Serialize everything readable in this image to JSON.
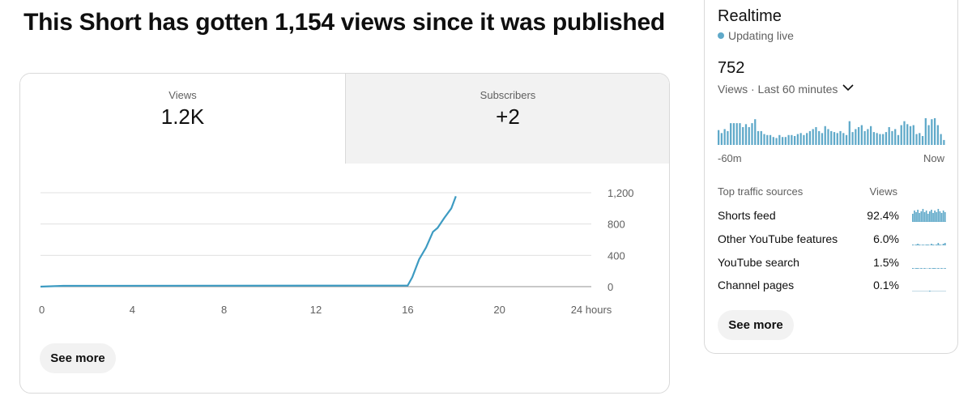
{
  "headline": "This Short has gotten 1,154 views since it was published",
  "metrics": [
    {
      "label": "Views",
      "value": "1.2K"
    },
    {
      "label": "Subscribers",
      "value": "+2"
    }
  ],
  "chart_data": {
    "type": "line",
    "title": "",
    "xlabel": "",
    "ylabel": "",
    "x_ticks": [
      "0",
      "4",
      "8",
      "12",
      "16",
      "20",
      "24 hours"
    ],
    "x_tick_values": [
      0,
      4,
      8,
      12,
      16,
      20,
      24
    ],
    "y_ticks": [
      "0",
      "400",
      "800",
      "1,200"
    ],
    "y_tick_values": [
      0,
      400,
      800,
      1200
    ],
    "xlim": [
      0,
      24
    ],
    "ylim": [
      0,
      1200
    ],
    "grid": true,
    "y_axis_side": "right",
    "series": [
      {
        "color": "#3d9bc2",
        "x": [
          0,
          1,
          16,
          16.2,
          16.5,
          16.8,
          17.1,
          17.3,
          17.6,
          17.9,
          18.1
        ],
        "y": [
          0,
          10,
          15,
          120,
          350,
          500,
          700,
          750,
          880,
          1000,
          1154
        ]
      }
    ]
  },
  "main_see_more": "See more",
  "realtime": {
    "title": "Realtime",
    "status": "Updating live",
    "count": "752",
    "period": "Views · Last 60 minutes",
    "bar_color": "#5fa9c9",
    "bars": [
      15,
      12,
      16,
      14,
      22,
      22,
      22,
      22,
      18,
      21,
      18,
      22,
      26,
      14,
      14,
      11,
      10,
      10,
      8,
      7,
      10,
      8,
      8,
      10,
      10,
      9,
      11,
      12,
      10,
      12,
      14,
      16,
      18,
      14,
      12,
      19,
      16,
      14,
      13,
      12,
      14,
      12,
      10,
      24,
      13,
      16,
      18,
      20,
      14,
      16,
      19,
      13,
      12,
      11,
      11,
      13,
      18,
      14,
      16,
      10,
      20,
      24,
      21,
      19,
      20,
      11,
      12,
      9,
      27,
      20,
      26,
      27,
      20,
      11,
      5
    ],
    "axis_left": "-60m",
    "axis_right": "Now",
    "traffic_header": "Top traffic sources",
    "traffic_views_header": "Views",
    "sources": [
      {
        "name": "Shorts feed",
        "pct": "92.4%",
        "spark": [
          10,
          14,
          12,
          15,
          11,
          13,
          16,
          12,
          14,
          10,
          13,
          15,
          11,
          14,
          12,
          16,
          13,
          11,
          14,
          12
        ]
      },
      {
        "name": "Other YouTube features",
        "pct": "6.0%",
        "spark": [
          1,
          0,
          1,
          2,
          1,
          0,
          1,
          0,
          1,
          1,
          0,
          2,
          1,
          0,
          1,
          3,
          1,
          0,
          2,
          3
        ]
      },
      {
        "name": "YouTube search",
        "pct": "1.5%",
        "spark": [
          1,
          0,
          1,
          1,
          0,
          1,
          0,
          1,
          0,
          0,
          1,
          0,
          1,
          1,
          0,
          1,
          0,
          1,
          0,
          1
        ]
      },
      {
        "name": "Channel pages",
        "pct": "0.1%",
        "spark": [
          0,
          0,
          0,
          0,
          0,
          0,
          0,
          0,
          0,
          0,
          1,
          0,
          0,
          0,
          0,
          0,
          0,
          0,
          0,
          0
        ]
      }
    ],
    "see_more": "See more"
  }
}
